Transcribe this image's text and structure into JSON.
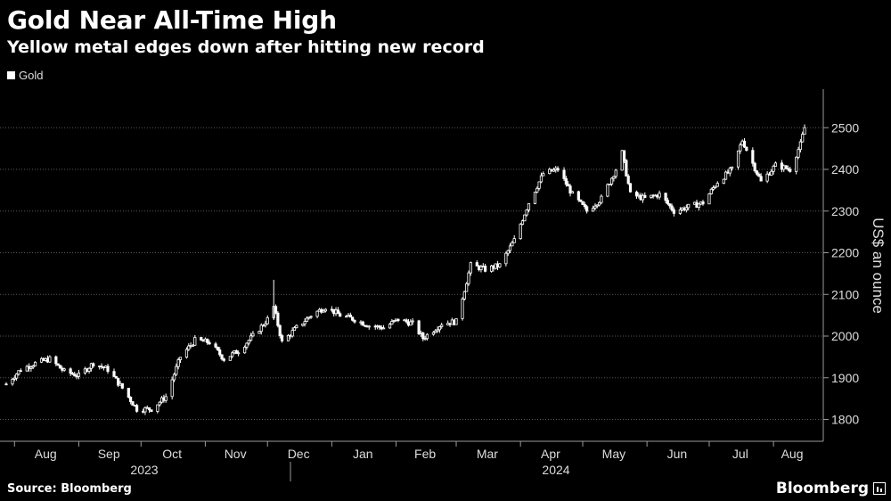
{
  "header": {
    "title": "Gold Near All-Time High",
    "subtitle": "Yellow metal edges down after hitting new record"
  },
  "legend": {
    "label": "Gold"
  },
  "footer": {
    "source": "Source: Bloomberg",
    "brand": "Bloomberg"
  },
  "colors": {
    "background": "#000000",
    "series": "#ffffff",
    "grid": "#5a5a5a",
    "text": "#dddddd"
  },
  "chart_data": {
    "type": "line",
    "style": "candlestick",
    "title": "Gold Near All-Time High",
    "subtitle": "Yellow metal edges down after hitting new record",
    "ylabel": "US$ an ounce",
    "ylim": [
      1750,
      2540
    ],
    "yticks": [
      1800,
      1900,
      2000,
      2100,
      2200,
      2300,
      2400,
      2500
    ],
    "y_axis_side": "right",
    "grid": "horizontal dotted",
    "legend_position": "top-left",
    "x_months": [
      "Aug",
      "Sep",
      "Oct",
      "Nov",
      "Dec",
      "Jan",
      "Feb",
      "Mar",
      "Apr",
      "May",
      "Jun",
      "Jul",
      "Aug"
    ],
    "x_years": [
      "2023",
      "2024"
    ],
    "series": [
      {
        "name": "Gold",
        "x": [
          "2023-07-28",
          "2023-08-04",
          "2023-08-11",
          "2023-08-18",
          "2023-08-25",
          "2023-09-01",
          "2023-09-08",
          "2023-09-15",
          "2023-09-22",
          "2023-09-29",
          "2023-10-06",
          "2023-10-13",
          "2023-10-20",
          "2023-10-27",
          "2023-11-03",
          "2023-11-10",
          "2023-11-17",
          "2023-11-24",
          "2023-12-01",
          "2023-12-04",
          "2023-12-08",
          "2023-12-15",
          "2023-12-22",
          "2023-12-29",
          "2024-01-05",
          "2024-01-12",
          "2024-01-19",
          "2024-01-26",
          "2024-02-02",
          "2024-02-09",
          "2024-02-14",
          "2024-02-23",
          "2024-03-01",
          "2024-03-08",
          "2024-03-15",
          "2024-03-22",
          "2024-03-29",
          "2024-04-05",
          "2024-04-12",
          "2024-04-19",
          "2024-04-26",
          "2024-05-03",
          "2024-05-10",
          "2024-05-17",
          "2024-05-20",
          "2024-05-24",
          "2024-05-31",
          "2024-06-07",
          "2024-06-14",
          "2024-06-21",
          "2024-06-28",
          "2024-07-05",
          "2024-07-12",
          "2024-07-17",
          "2024-07-26",
          "2024-08-02",
          "2024-08-09",
          "2024-08-14",
          "2024-08-16"
        ],
        "close": [
          1885,
          1920,
          1935,
          1945,
          1915,
          1905,
          1935,
          1920,
          1875,
          1825,
          1825,
          1855,
          1950,
          1990,
          1985,
          1945,
          1965,
          2000,
          2040,
          2070,
          1985,
          2020,
          2050,
          2070,
          2050,
          2040,
          2025,
          2020,
          2040,
          2030,
          1995,
          2030,
          2035,
          2170,
          2160,
          2170,
          2230,
          2320,
          2390,
          2400,
          2340,
          2300,
          2330,
          2400,
          2440,
          2340,
          2330,
          2340,
          2300,
          2310,
          2320,
          2370,
          2400,
          2470,
          2370,
          2410,
          2400,
          2460,
          2500
        ]
      }
    ]
  }
}
